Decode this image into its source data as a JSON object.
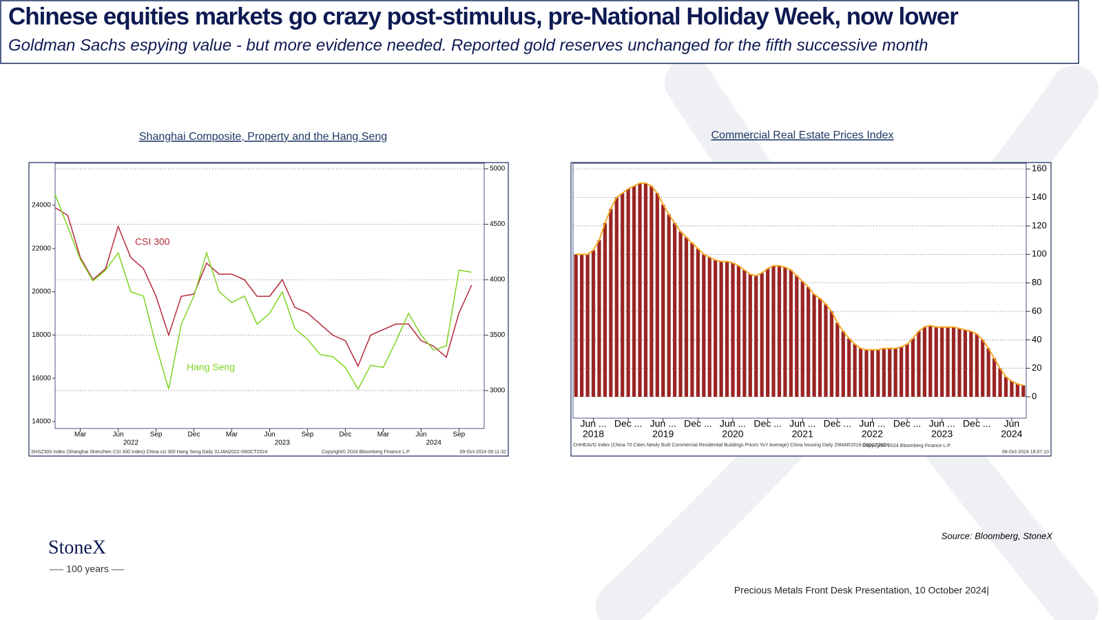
{
  "slide": {
    "title": "Chinese equities markets go crazy post-stimulus, pre-National Holiday Week, now lower",
    "subtitle": "Goldman Sachs espying value - but more evidence needed.  Reported gold reserves unchanged for the fifth successive month",
    "source": "Source: Bloomberg, StoneX",
    "footer": "Precious Metals Front Desk Presentation, 10 October 2024|",
    "logo": "StoneX",
    "logo_sub": "100 years"
  },
  "chart_data": [
    {
      "type": "line",
      "title": "Shanghai Composite, Property and the Hang Seng",
      "x": [
        "2022-01",
        "2022-02",
        "2022-03",
        "2022-04",
        "2022-05",
        "2022-06",
        "2022-07",
        "2022-08",
        "2022-09",
        "2022-10",
        "2022-11",
        "2022-12",
        "2023-01",
        "2023-02",
        "2023-03",
        "2023-04",
        "2023-05",
        "2023-06",
        "2023-07",
        "2023-08",
        "2023-09",
        "2023-10",
        "2023-11",
        "2023-12",
        "2024-01",
        "2024-02",
        "2024-03",
        "2024-04",
        "2024-05",
        "2024-06",
        "2024-07",
        "2024-08",
        "2024-09",
        "2024-10"
      ],
      "series": [
        {
          "name": "CSI 300",
          "color": "#b5283a",
          "axis": "y2",
          "values": [
            4650,
            4580,
            4200,
            4000,
            4100,
            4480,
            4200,
            4100,
            3850,
            3500,
            3850,
            3870,
            4150,
            4050,
            4050,
            4000,
            3850,
            3850,
            4000,
            3750,
            3700,
            3600,
            3500,
            3450,
            3220,
            3500,
            3550,
            3600,
            3600,
            3450,
            3400,
            3300,
            3700,
            3950
          ]
        },
        {
          "name": "Hang Seng",
          "color": "#7ed321",
          "values": [
            24500,
            23000,
            21500,
            20500,
            21000,
            21800,
            20000,
            19800,
            17500,
            15500,
            18500,
            19800,
            21800,
            20000,
            19500,
            19800,
            18500,
            19000,
            20000,
            18300,
            17800,
            17100,
            17000,
            16500,
            15500,
            16600,
            16500,
            17700,
            19000,
            18000,
            17300,
            17500,
            21000,
            20900
          ]
        }
      ],
      "xlim": [
        "2022-01",
        "2024-11"
      ],
      "xticks": [
        {
          "value": "2022-03",
          "label": "Mar"
        },
        {
          "value": "2022-06",
          "label": "Jun"
        },
        {
          "value": "2022-09",
          "label": "Sep"
        },
        {
          "value": "2022-12",
          "label": "Dec"
        },
        {
          "value": "2023-03",
          "label": "Mar"
        },
        {
          "value": "2023-06",
          "label": "Jun"
        },
        {
          "value": "2023-09",
          "label": "Sep"
        },
        {
          "value": "2023-12",
          "label": "Dec"
        },
        {
          "value": "2024-03",
          "label": "Mar"
        },
        {
          "value": "2024-06",
          "label": "Jun"
        },
        {
          "value": "2024-09",
          "label": "Sep"
        }
      ],
      "xgroups": [
        {
          "value": "2022-07",
          "label": "2022"
        },
        {
          "value": "2023-07",
          "label": "2023"
        },
        {
          "value": "2024-07",
          "label": "2024"
        }
      ],
      "ylim": [
        13680,
        25940
      ],
      "yticks": [
        14000,
        16000,
        18000,
        20000,
        22000,
        24000
      ],
      "y2lim": [
        2658,
        5050
      ],
      "y2ticks": [
        3000,
        3500,
        4000,
        4500,
        5000
      ],
      "grid": "y2",
      "notes": [
        "SHSZ300 Index (Shanghai Shenzhen CSI 300 Index) China csi 300 Hang Seng  Daily 31JAN2022-09OCT2024",
        "Copyright© 2024 Bloomberg Finance L.P.",
        "09-Oct-2024 09:11:32"
      ]
    },
    {
      "type": "bar",
      "title": "Commercial Real Estate Prices Index",
      "x": [
        "2018-03",
        "2018-04",
        "2018-05",
        "2018-06",
        "2018-07",
        "2018-08",
        "2018-09",
        "2018-10",
        "2018-11",
        "2018-12",
        "2019-01",
        "2019-02",
        "2019-03",
        "2019-04",
        "2019-05",
        "2019-06",
        "2019-07",
        "2019-08",
        "2019-09",
        "2019-10",
        "2019-11",
        "2019-12",
        "2020-01",
        "2020-02",
        "2020-03",
        "2020-04",
        "2020-05",
        "2020-06",
        "2020-07",
        "2020-08",
        "2020-09",
        "2020-10",
        "2020-11",
        "2020-12",
        "2021-01",
        "2021-02",
        "2021-03",
        "2021-04",
        "2021-05",
        "2021-06",
        "2021-07",
        "2021-08",
        "2021-09",
        "2021-10",
        "2021-11",
        "2021-12",
        "2022-01",
        "2022-02",
        "2022-03",
        "2022-04",
        "2022-05",
        "2022-06",
        "2022-07",
        "2022-08",
        "2022-09",
        "2022-10",
        "2022-11",
        "2022-12",
        "2023-01",
        "2023-02",
        "2023-03",
        "2023-04",
        "2023-05",
        "2023-06",
        "2023-07",
        "2023-08",
        "2023-09",
        "2023-10",
        "2023-11",
        "2023-12",
        "2024-01",
        "2024-02",
        "2024-03",
        "2024-04",
        "2024-05",
        "2024-06",
        "2024-07",
        "2024-08"
      ],
      "values": [
        100,
        100,
        100,
        103,
        110,
        122,
        132,
        140,
        143,
        146,
        148,
        150,
        150,
        148,
        143,
        135,
        128,
        122,
        116,
        112,
        108,
        104,
        100,
        98,
        96,
        95,
        95,
        94,
        92,
        89,
        86,
        85,
        87,
        90,
        92,
        92,
        91,
        89,
        85,
        81,
        77,
        72,
        69,
        65,
        60,
        52,
        46,
        41,
        37,
        34,
        33,
        33,
        33,
        34,
        34,
        34,
        35,
        37,
        41,
        46,
        49,
        50,
        49,
        49,
        49,
        49,
        48,
        47,
        46,
        44,
        40,
        34,
        27,
        20,
        14,
        11,
        9,
        8
      ],
      "color": "#9b2424",
      "line_color": "#f5a623",
      "xlim": [
        "2018-03",
        "2024-09"
      ],
      "xticks": [
        {
          "value": "2018-06",
          "label": "Jun ..."
        },
        {
          "value": "2018-12",
          "label": "Dec ..."
        },
        {
          "value": "2019-06",
          "label": "Jun ..."
        },
        {
          "value": "2019-12",
          "label": "Dec ..."
        },
        {
          "value": "2020-06",
          "label": "Jun ..."
        },
        {
          "value": "2020-12",
          "label": "Dec ..."
        },
        {
          "value": "2021-06",
          "label": "Jun ..."
        },
        {
          "value": "2021-12",
          "label": "Dec ..."
        },
        {
          "value": "2022-06",
          "label": "Jun ..."
        },
        {
          "value": "2022-12",
          "label": "Dec ..."
        },
        {
          "value": "2023-06",
          "label": "Jun ..."
        },
        {
          "value": "2023-12",
          "label": "Dec ..."
        },
        {
          "value": "2024-06",
          "label": "Jun"
        }
      ],
      "xgroups": [
        {
          "value": "2018-06",
          "label": "2018"
        },
        {
          "value": "2019-06",
          "label": "2019"
        },
        {
          "value": "2020-06",
          "label": "2020"
        },
        {
          "value": "2021-06",
          "label": "2021"
        },
        {
          "value": "2022-06",
          "label": "2022"
        },
        {
          "value": "2023-06",
          "label": "2023"
        },
        {
          "value": "2024-06",
          "label": "2024"
        }
      ],
      "ylim": [
        -15,
        164
      ],
      "yticks": [
        0,
        20,
        40,
        60,
        80,
        100,
        120,
        140,
        160
      ],
      "grid": "y",
      "notes": [
        "CHHEAVG Index (China 70 Cities Newly Built Commercial Residential Buildings Prices YoY Average) China housing  Daily 29MAR2018-08OCT2024",
        "Copyright© 2024 Bloomberg Finance L.P.",
        "08-Oct-2024 16:07:10"
      ]
    }
  ]
}
